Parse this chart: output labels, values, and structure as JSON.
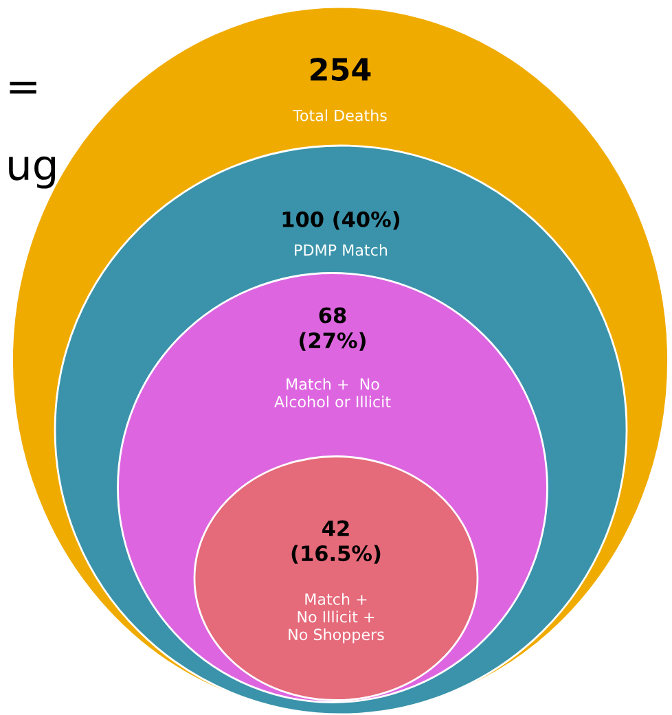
{
  "chart_data": {
    "type": "other",
    "categories": [
      "Total Deaths",
      "PDMP Match",
      "Match +  No\nAlcohol or Illicit",
      "Match +\nNo Illicit +\nNo Shoppers"
    ],
    "values": [
      254,
      100,
      68,
      42
    ],
    "value_labels": [
      "254",
      "100 (40%)",
      "68\n(27%)",
      "42\n(16.5%)"
    ],
    "colors": [
      "#f0ab00",
      "#3a93aa",
      "#dd66e0",
      "#e56a7a"
    ],
    "annotations": [
      "=",
      "ug"
    ]
  }
}
